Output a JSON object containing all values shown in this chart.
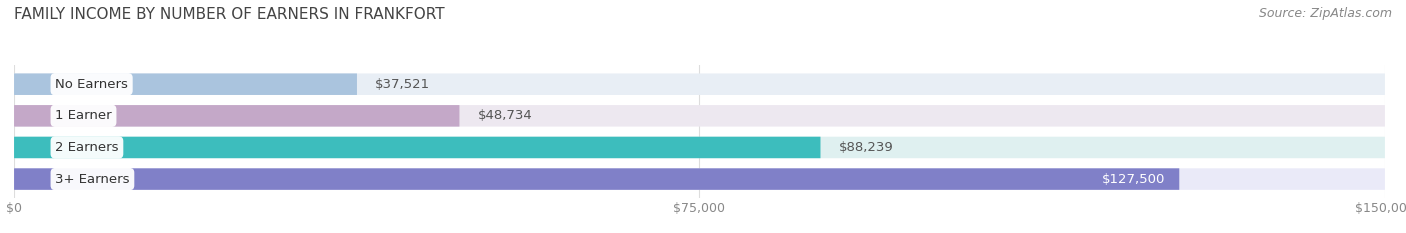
{
  "title": "FAMILY INCOME BY NUMBER OF EARNERS IN FRANKFORT",
  "source": "Source: ZipAtlas.com",
  "categories": [
    "No Earners",
    "1 Earner",
    "2 Earners",
    "3+ Earners"
  ],
  "values": [
    37521,
    48734,
    88239,
    127500
  ],
  "labels": [
    "$37,521",
    "$48,734",
    "$88,239",
    "$127,500"
  ],
  "bar_colors": [
    "#aac4de",
    "#c4a8c8",
    "#3dbdbd",
    "#8080c8"
  ],
  "bar_bg_colors": [
    "#e8eef5",
    "#ede8f0",
    "#dff0f0",
    "#eaeaf8"
  ],
  "label_colors": [
    "#555555",
    "#555555",
    "#555555",
    "#ffffff"
  ],
  "xlim": [
    0,
    150000
  ],
  "xtick_values": [
    0,
    75000,
    150000
  ],
  "xtick_labels": [
    "$0",
    "$75,000",
    "$150,000"
  ],
  "title_fontsize": 11,
  "source_fontsize": 9,
  "bar_label_fontsize": 9.5,
  "category_fontsize": 9.5,
  "tick_fontsize": 9,
  "background_color": "#ffffff",
  "separator_color": "#dddddd",
  "grid_color": "#dddddd"
}
